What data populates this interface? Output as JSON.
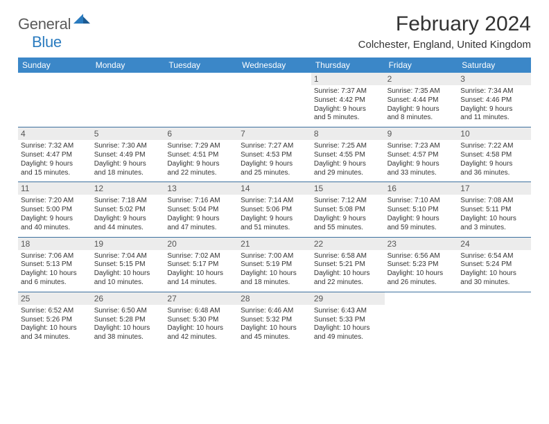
{
  "logo": {
    "gray_text": "General",
    "blue_text": "Blue"
  },
  "colors": {
    "header_bg": "#3b87c8",
    "header_text": "#ffffff",
    "daynum_bg": "#ececec",
    "daynum_text": "#555555",
    "body_text": "#333333",
    "row_border": "#3b6f9e",
    "logo_gray": "#5a5a5a",
    "logo_blue": "#2a7bbf"
  },
  "title": "February 2024",
  "location": "Colchester, England, United Kingdom",
  "weekdays": [
    "Sunday",
    "Monday",
    "Tuesday",
    "Wednesday",
    "Thursday",
    "Friday",
    "Saturday"
  ],
  "weeks": [
    [
      {
        "empty": true
      },
      {
        "empty": true
      },
      {
        "empty": true
      },
      {
        "empty": true
      },
      {
        "num": "1",
        "sunrise": "Sunrise: 7:37 AM",
        "sunset": "Sunset: 4:42 PM",
        "day1": "Daylight: 9 hours",
        "day2": "and 5 minutes."
      },
      {
        "num": "2",
        "sunrise": "Sunrise: 7:35 AM",
        "sunset": "Sunset: 4:44 PM",
        "day1": "Daylight: 9 hours",
        "day2": "and 8 minutes."
      },
      {
        "num": "3",
        "sunrise": "Sunrise: 7:34 AM",
        "sunset": "Sunset: 4:46 PM",
        "day1": "Daylight: 9 hours",
        "day2": "and 11 minutes."
      }
    ],
    [
      {
        "num": "4",
        "sunrise": "Sunrise: 7:32 AM",
        "sunset": "Sunset: 4:47 PM",
        "day1": "Daylight: 9 hours",
        "day2": "and 15 minutes."
      },
      {
        "num": "5",
        "sunrise": "Sunrise: 7:30 AM",
        "sunset": "Sunset: 4:49 PM",
        "day1": "Daylight: 9 hours",
        "day2": "and 18 minutes."
      },
      {
        "num": "6",
        "sunrise": "Sunrise: 7:29 AM",
        "sunset": "Sunset: 4:51 PM",
        "day1": "Daylight: 9 hours",
        "day2": "and 22 minutes."
      },
      {
        "num": "7",
        "sunrise": "Sunrise: 7:27 AM",
        "sunset": "Sunset: 4:53 PM",
        "day1": "Daylight: 9 hours",
        "day2": "and 25 minutes."
      },
      {
        "num": "8",
        "sunrise": "Sunrise: 7:25 AM",
        "sunset": "Sunset: 4:55 PM",
        "day1": "Daylight: 9 hours",
        "day2": "and 29 minutes."
      },
      {
        "num": "9",
        "sunrise": "Sunrise: 7:23 AM",
        "sunset": "Sunset: 4:57 PM",
        "day1": "Daylight: 9 hours",
        "day2": "and 33 minutes."
      },
      {
        "num": "10",
        "sunrise": "Sunrise: 7:22 AM",
        "sunset": "Sunset: 4:58 PM",
        "day1": "Daylight: 9 hours",
        "day2": "and 36 minutes."
      }
    ],
    [
      {
        "num": "11",
        "sunrise": "Sunrise: 7:20 AM",
        "sunset": "Sunset: 5:00 PM",
        "day1": "Daylight: 9 hours",
        "day2": "and 40 minutes."
      },
      {
        "num": "12",
        "sunrise": "Sunrise: 7:18 AM",
        "sunset": "Sunset: 5:02 PM",
        "day1": "Daylight: 9 hours",
        "day2": "and 44 minutes."
      },
      {
        "num": "13",
        "sunrise": "Sunrise: 7:16 AM",
        "sunset": "Sunset: 5:04 PM",
        "day1": "Daylight: 9 hours",
        "day2": "and 47 minutes."
      },
      {
        "num": "14",
        "sunrise": "Sunrise: 7:14 AM",
        "sunset": "Sunset: 5:06 PM",
        "day1": "Daylight: 9 hours",
        "day2": "and 51 minutes."
      },
      {
        "num": "15",
        "sunrise": "Sunrise: 7:12 AM",
        "sunset": "Sunset: 5:08 PM",
        "day1": "Daylight: 9 hours",
        "day2": "and 55 minutes."
      },
      {
        "num": "16",
        "sunrise": "Sunrise: 7:10 AM",
        "sunset": "Sunset: 5:10 PM",
        "day1": "Daylight: 9 hours",
        "day2": "and 59 minutes."
      },
      {
        "num": "17",
        "sunrise": "Sunrise: 7:08 AM",
        "sunset": "Sunset: 5:11 PM",
        "day1": "Daylight: 10 hours",
        "day2": "and 3 minutes."
      }
    ],
    [
      {
        "num": "18",
        "sunrise": "Sunrise: 7:06 AM",
        "sunset": "Sunset: 5:13 PM",
        "day1": "Daylight: 10 hours",
        "day2": "and 6 minutes."
      },
      {
        "num": "19",
        "sunrise": "Sunrise: 7:04 AM",
        "sunset": "Sunset: 5:15 PM",
        "day1": "Daylight: 10 hours",
        "day2": "and 10 minutes."
      },
      {
        "num": "20",
        "sunrise": "Sunrise: 7:02 AM",
        "sunset": "Sunset: 5:17 PM",
        "day1": "Daylight: 10 hours",
        "day2": "and 14 minutes."
      },
      {
        "num": "21",
        "sunrise": "Sunrise: 7:00 AM",
        "sunset": "Sunset: 5:19 PM",
        "day1": "Daylight: 10 hours",
        "day2": "and 18 minutes."
      },
      {
        "num": "22",
        "sunrise": "Sunrise: 6:58 AM",
        "sunset": "Sunset: 5:21 PM",
        "day1": "Daylight: 10 hours",
        "day2": "and 22 minutes."
      },
      {
        "num": "23",
        "sunrise": "Sunrise: 6:56 AM",
        "sunset": "Sunset: 5:23 PM",
        "day1": "Daylight: 10 hours",
        "day2": "and 26 minutes."
      },
      {
        "num": "24",
        "sunrise": "Sunrise: 6:54 AM",
        "sunset": "Sunset: 5:24 PM",
        "day1": "Daylight: 10 hours",
        "day2": "and 30 minutes."
      }
    ],
    [
      {
        "num": "25",
        "sunrise": "Sunrise: 6:52 AM",
        "sunset": "Sunset: 5:26 PM",
        "day1": "Daylight: 10 hours",
        "day2": "and 34 minutes."
      },
      {
        "num": "26",
        "sunrise": "Sunrise: 6:50 AM",
        "sunset": "Sunset: 5:28 PM",
        "day1": "Daylight: 10 hours",
        "day2": "and 38 minutes."
      },
      {
        "num": "27",
        "sunrise": "Sunrise: 6:48 AM",
        "sunset": "Sunset: 5:30 PM",
        "day1": "Daylight: 10 hours",
        "day2": "and 42 minutes."
      },
      {
        "num": "28",
        "sunrise": "Sunrise: 6:46 AM",
        "sunset": "Sunset: 5:32 PM",
        "day1": "Daylight: 10 hours",
        "day2": "and 45 minutes."
      },
      {
        "num": "29",
        "sunrise": "Sunrise: 6:43 AM",
        "sunset": "Sunset: 5:33 PM",
        "day1": "Daylight: 10 hours",
        "day2": "and 49 minutes."
      },
      {
        "empty": true
      },
      {
        "empty": true
      }
    ]
  ]
}
